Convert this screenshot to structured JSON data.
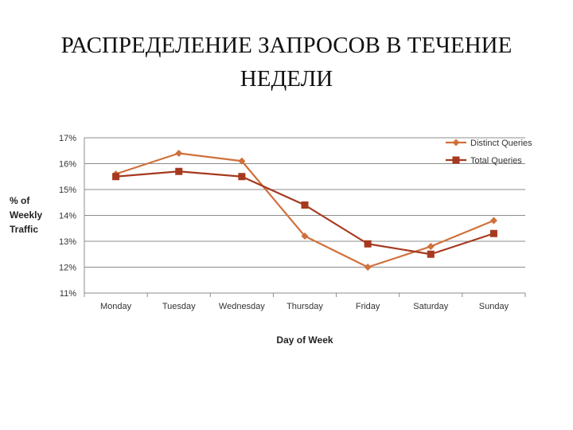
{
  "slide": {
    "title_line1": "РАСПРЕДЕЛЕНИЕ ЗАПРОСОВ В ТЕЧЕНИЕ",
    "title_line2": "НЕДЕЛИ"
  },
  "chart_data": {
    "type": "line",
    "categories": [
      "Monday",
      "Tuesday",
      "Wednesday",
      "Thursday",
      "Friday",
      "Saturday",
      "Sunday"
    ],
    "series": [
      {
        "name": "Distinct Queries",
        "color": "#d0703a",
        "marker": "diamond",
        "values": [
          15.6,
          16.4,
          16.1,
          13.2,
          12.0,
          12.8,
          13.8
        ]
      },
      {
        "name": "Total Queries",
        "color": "#a6391f",
        "marker": "square",
        "values": [
          15.5,
          15.7,
          15.5,
          14.4,
          12.9,
          12.5,
          13.3
        ]
      }
    ],
    "xlabel": "Day of Week",
    "ylabel_lines": [
      "% of",
      "Weekly",
      "Traffic"
    ],
    "ylim": [
      11,
      17
    ],
    "yticks": [
      11,
      12,
      13,
      14,
      15,
      16,
      17
    ],
    "ytick_labels": [
      "11%",
      "12%",
      "13%",
      "14%",
      "15%",
      "16%",
      "17%"
    ],
    "grid": true,
    "legend_position": "top-right"
  }
}
